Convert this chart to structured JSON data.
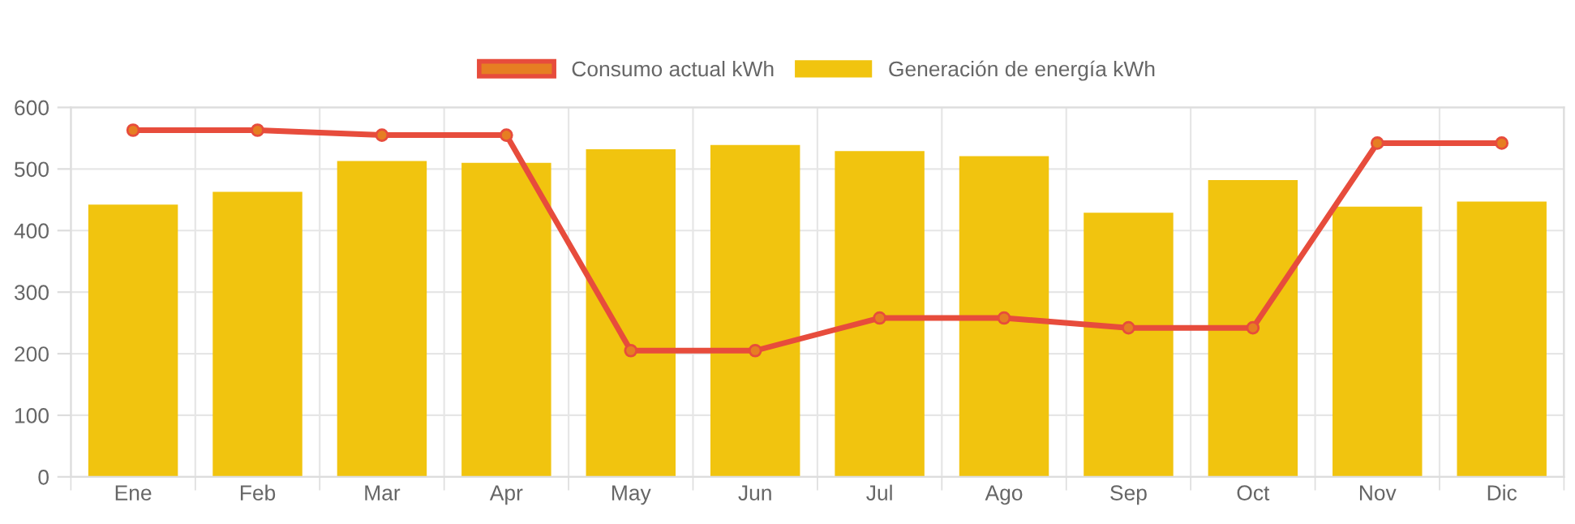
{
  "chart_data": {
    "type": "bar",
    "categories": [
      "Ene",
      "Feb",
      "Mar",
      "Apr",
      "May",
      "Jun",
      "Jul",
      "Ago",
      "Sep",
      "Oct",
      "Nov",
      "Dic"
    ],
    "series": [
      {
        "name": "Consumo actual kWh",
        "type": "line",
        "color": "#e74c3c",
        "marker": "circle",
        "values": [
          563,
          563,
          555,
          555,
          205,
          205,
          258,
          258,
          242,
          242,
          542,
          542
        ]
      },
      {
        "name": "Generación de energía kWh",
        "color": "#f1c40f",
        "values": [
          442,
          463,
          513,
          510,
          532,
          539,
          529,
          521,
          429,
          482,
          439,
          447
        ]
      }
    ],
    "ylim": [
      0,
      600
    ],
    "yticks": [
      0,
      100,
      200,
      300,
      400,
      500,
      600
    ],
    "grid": true,
    "legend": "top"
  }
}
